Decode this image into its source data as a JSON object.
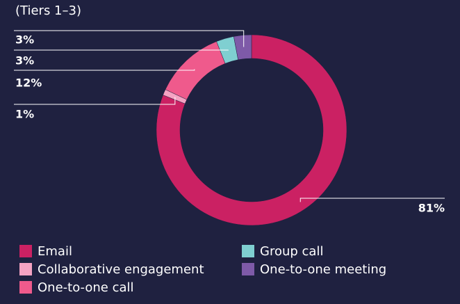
{
  "chart_data": {
    "type": "donut",
    "title": "(Tiers 1–3)",
    "categories": [
      "Email",
      "Collaborative engagement",
      "One-to-one call",
      "Group call",
      "One-to-one meeting"
    ],
    "values": [
      81,
      1,
      12,
      3,
      3
    ],
    "value_labels": [
      "81%",
      "1%",
      "12%",
      "3%",
      "3%"
    ],
    "colors": [
      "#cb2163",
      "#f5a3c3",
      "#ef5a8c",
      "#7fcfd1",
      "#7e5aa8"
    ]
  }
}
